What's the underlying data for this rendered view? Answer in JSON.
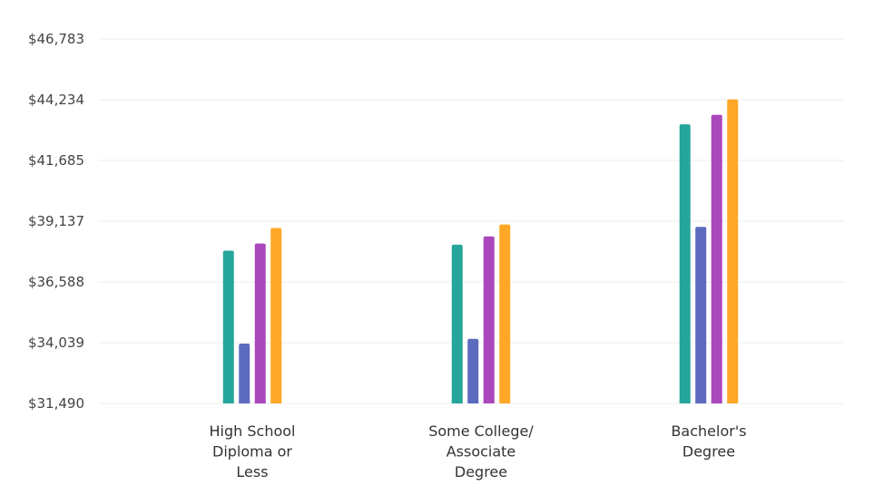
{
  "colors": {
    "teal": "#26a69a",
    "indigo": "#5c6bc0",
    "purple": "#ab47bc",
    "orange": "#ffa726",
    "grid": "#ececec"
  },
  "chart_data": {
    "type": "bar",
    "title": "",
    "xlabel": "",
    "ylabel": "",
    "ylim": [
      31490,
      46783
    ],
    "yticks": [
      "$31,490",
      "$34,039",
      "$36,588",
      "$39,137",
      "$41,685",
      "$44,234",
      "$46,783"
    ],
    "ytick_values": [
      31490,
      34039,
      36588,
      39137,
      41685,
      44234,
      46783
    ],
    "grid": true,
    "legend": "none",
    "categories": [
      [
        "High School",
        "Diploma or",
        "Less"
      ],
      [
        "Some College/",
        "Associate",
        "Degree"
      ],
      [
        "Bachelor's",
        "Degree"
      ]
    ],
    "series": [
      {
        "color": "#26a69a",
        "values": [
          37900,
          38150,
          43200
        ]
      },
      {
        "color": "#5c6bc0",
        "values": [
          34000,
          34200,
          38900
        ]
      },
      {
        "color": "#ab47bc",
        "values": [
          38200,
          38500,
          43600
        ]
      },
      {
        "color": "#ffa726",
        "values": [
          38850,
          39000,
          44250
        ]
      }
    ]
  }
}
